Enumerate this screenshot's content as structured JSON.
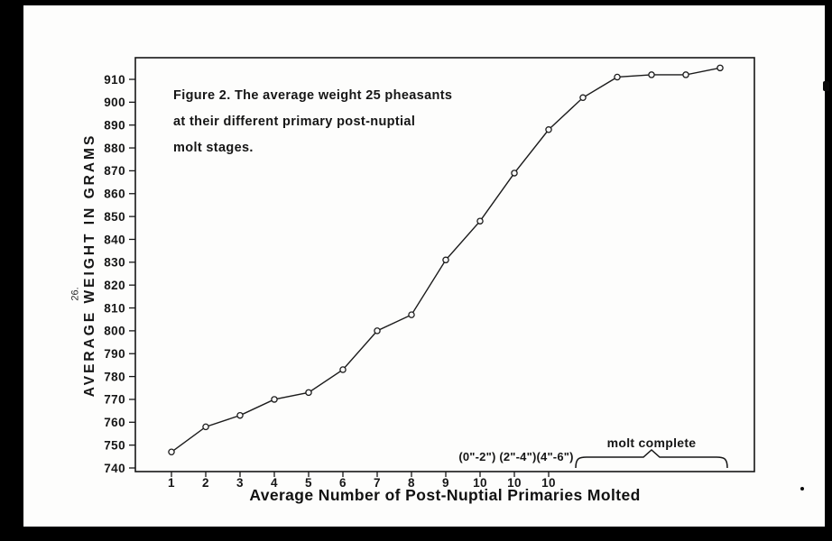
{
  "page": {
    "page_number": "26.",
    "background_color": "#000000",
    "paper_color": "#fdfdfc"
  },
  "chart_data": {
    "type": "line",
    "caption_lines": [
      "Figure 2. The average weight 25 pheasants",
      "at their different primary post-nuptial",
      "molt stages."
    ],
    "xlabel": "Average Number of Post-Nuptial Primaries Molted",
    "ylabel": "AVERAGE WEIGHT IN GRAMS",
    "ylim": [
      740,
      920
    ],
    "y_ticks": [
      740,
      750,
      760,
      770,
      780,
      790,
      800,
      810,
      820,
      830,
      840,
      850,
      860,
      870,
      880,
      890,
      900,
      910
    ],
    "x_tick_labels": [
      "1",
      "2",
      "3",
      "4",
      "5",
      "6",
      "7",
      "8",
      "9",
      "10",
      "10",
      "10"
    ],
    "series": [
      {
        "name": "average weight in grams",
        "stage_index": [
          1,
          2,
          3,
          4,
          5,
          6,
          7,
          8,
          9,
          10,
          11,
          12,
          13,
          14,
          15,
          16,
          17
        ],
        "values": [
          747,
          758,
          763,
          770,
          773,
          783,
          800,
          807,
          831,
          848,
          869,
          888,
          902,
          911,
          912,
          912,
          915
        ]
      }
    ],
    "annotations": {
      "primary_regrowth_ranges": "(0\"-2\") (2\"-4\")(4\"-6\")",
      "molt_complete": "molt complete"
    },
    "grid": false,
    "legend": "none",
    "marker": "open-circle",
    "line_color": "#1b1b1b"
  }
}
